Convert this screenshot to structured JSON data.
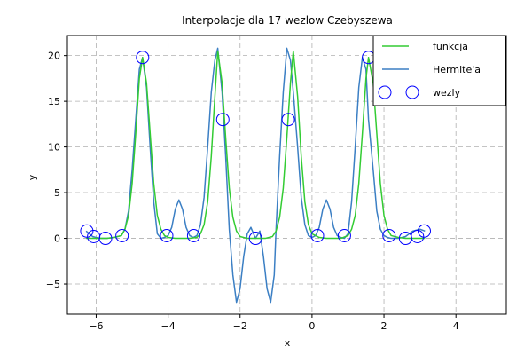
{
  "chart_data": {
    "type": "line",
    "title": "Interpolacje dla 17 wezlow Czebyszewa",
    "xlabel": "x",
    "ylabel": "y",
    "xlim": [
      -6.8,
      5.4
    ],
    "ylim": [
      -8.3,
      22.2
    ],
    "xticks": [
      -6,
      -4,
      -2,
      0,
      2,
      4
    ],
    "yticks": [
      -5,
      0,
      5,
      10,
      15,
      20
    ],
    "xtick_labels": [
      "−6",
      "−4",
      "−2",
      "0",
      "2",
      "4"
    ],
    "ytick_labels": [
      "−5",
      "0",
      "5",
      "10",
      "15",
      "20"
    ],
    "grid": true,
    "legend_position": "top-right",
    "colors": {
      "funkcja": "#33cc33",
      "hermite": "#3b7fc4",
      "wezly": "#0000ff",
      "grid": "#b0b0b0"
    },
    "series": [
      {
        "name": "funkcja",
        "kind": "line",
        "x": [
          -6.28,
          -6.1,
          -5.9,
          -5.7,
          -5.5,
          -5.3,
          -5.2,
          -5.1,
          -5.0,
          -4.9,
          -4.8,
          -4.71,
          -4.6,
          -4.5,
          -4.4,
          -4.3,
          -4.2,
          -4.1,
          -4.0,
          -3.8,
          -3.6,
          -3.4,
          -3.2,
          -3.1,
          -3.0,
          -2.9,
          -2.8,
          -2.7,
          -2.62,
          -2.5,
          -2.4,
          -2.3,
          -2.2,
          -2.1,
          -2.0,
          -1.8,
          -1.571,
          -1.3,
          -1.1,
          -1.0,
          -0.9,
          -0.8,
          -0.7,
          -0.6,
          -0.52,
          -0.4,
          -0.3,
          -0.2,
          -0.1,
          0.0,
          0.2,
          0.4,
          0.6,
          0.8,
          1.0,
          1.1,
          1.2,
          1.3,
          1.4,
          1.5,
          1.57,
          1.7,
          1.8,
          1.9,
          2.0,
          2.1,
          2.2,
          2.4,
          2.6,
          2.8,
          3.0,
          3.14
        ],
        "y": [
          0.0,
          0.0,
          0.0,
          0.0,
          0.1,
          0.3,
          1.0,
          2.5,
          6.0,
          11.5,
          17.5,
          19.8,
          17.0,
          11.5,
          6.0,
          2.5,
          1.0,
          0.3,
          0.1,
          0.0,
          0.0,
          0.0,
          0.1,
          0.5,
          1.5,
          4.0,
          9.0,
          15.5,
          20.5,
          17.0,
          11.0,
          5.5,
          2.3,
          0.8,
          0.2,
          0.0,
          0.0,
          0.0,
          0.2,
          0.8,
          2.3,
          5.5,
          11.0,
          17.0,
          20.5,
          15.5,
          9.0,
          4.0,
          1.5,
          0.5,
          0.1,
          0.0,
          0.0,
          0.0,
          0.3,
          1.0,
          2.5,
          6.0,
          11.5,
          17.5,
          19.8,
          17.0,
          11.5,
          6.0,
          2.5,
          1.0,
          0.3,
          0.1,
          0.0,
          0.0,
          0.0,
          0.0
        ]
      },
      {
        "name": "Hermite'a",
        "kind": "line",
        "x": [
          -6.28,
          -6.1,
          -5.9,
          -5.7,
          -5.5,
          -5.3,
          -5.2,
          -5.1,
          -5.0,
          -4.9,
          -4.8,
          -4.71,
          -4.6,
          -4.5,
          -4.4,
          -4.3,
          -4.2,
          -4.1,
          -4.0,
          -3.9,
          -3.8,
          -3.7,
          -3.6,
          -3.5,
          -3.4,
          -3.3,
          -3.2,
          -3.1,
          -3.0,
          -2.9,
          -2.8,
          -2.7,
          -2.62,
          -2.5,
          -2.4,
          -2.3,
          -2.2,
          -2.1,
          -2.0,
          -1.9,
          -1.8,
          -1.7,
          -1.571,
          -1.45,
          -1.35,
          -1.25,
          -1.15,
          -1.05,
          -1.0,
          -0.9,
          -0.8,
          -0.7,
          -0.6,
          -0.52,
          -0.4,
          -0.3,
          -0.2,
          -0.1,
          0.0,
          0.1,
          0.2,
          0.3,
          0.4,
          0.5,
          0.6,
          0.7,
          0.8,
          0.9,
          1.0,
          1.1,
          1.2,
          1.3,
          1.4,
          1.5,
          1.57,
          1.7,
          1.8,
          1.9,
          2.0,
          2.1,
          2.2,
          2.4,
          2.6,
          2.8,
          3.0,
          3.14
        ],
        "y": [
          0.8,
          0.2,
          0.0,
          0.0,
          0.1,
          0.3,
          1.0,
          3.0,
          7.5,
          13.0,
          18.5,
          19.8,
          16.5,
          10.0,
          4.0,
          0.5,
          0.0,
          0.1,
          0.3,
          1.2,
          3.2,
          4.2,
          3.2,
          1.2,
          0.3,
          0.1,
          0.3,
          1.5,
          4.5,
          10.0,
          16.0,
          19.5,
          20.8,
          16.0,
          9.0,
          1.0,
          -4.0,
          -7.0,
          -5.5,
          -2.0,
          0.5,
          1.2,
          0.0,
          0.8,
          -2.0,
          -5.5,
          -7.0,
          -4.0,
          1.0,
          9.0,
          16.0,
          20.8,
          19.5,
          16.0,
          10.0,
          4.5,
          1.5,
          0.3,
          0.1,
          0.3,
          1.2,
          3.2,
          4.2,
          3.2,
          1.2,
          0.3,
          0.1,
          0.0,
          0.5,
          4.0,
          10.0,
          16.5,
          19.8,
          18.5,
          13.0,
          7.5,
          3.0,
          1.0,
          0.3,
          0.1,
          0.0,
          0.0,
          0.2,
          0.8,
          1.0,
          0.8
        ]
      },
      {
        "name": "wezly",
        "kind": "markers",
        "x": [
          -6.26,
          -6.07,
          -5.74,
          -5.28,
          -4.71,
          -4.04,
          -3.29,
          -2.48,
          -1.57,
          -0.66,
          0.15,
          0.9,
          1.57,
          2.14,
          2.6,
          2.93,
          3.12
        ],
        "y": [
          0.8,
          0.2,
          0.0,
          0.3,
          19.8,
          0.3,
          0.3,
          13.0,
          0.0,
          13.0,
          0.3,
          0.3,
          19.8,
          0.3,
          0.0,
          0.2,
          0.8
        ]
      }
    ]
  }
}
